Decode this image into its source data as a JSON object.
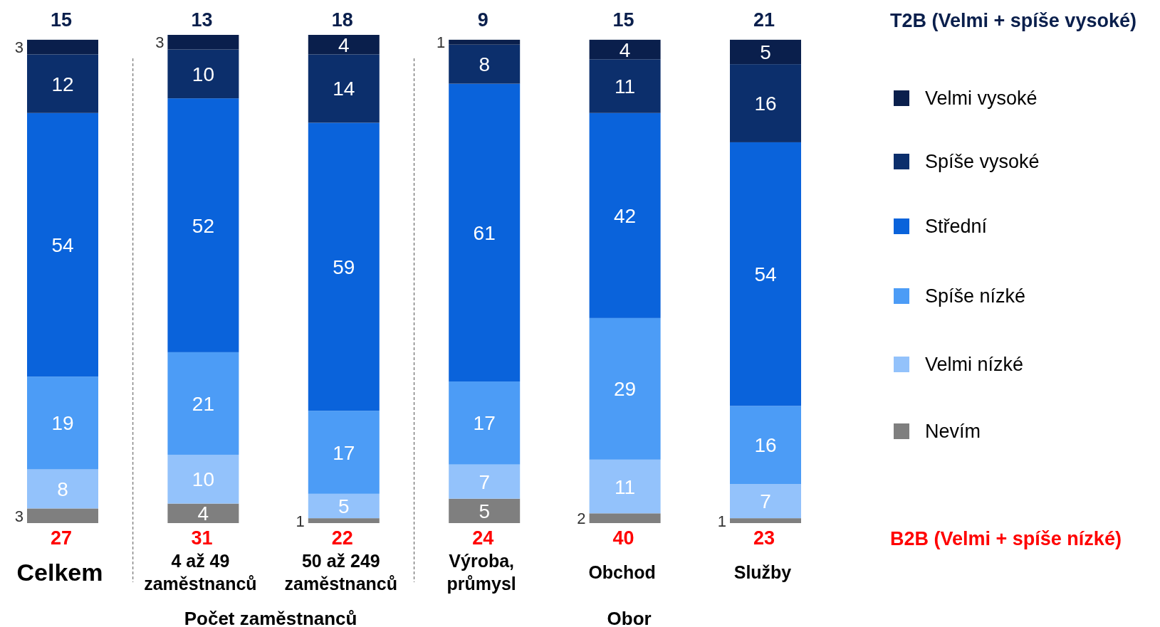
{
  "chart_data": {
    "type": "bar",
    "stacked": true,
    "data_labels": true,
    "legend": "right",
    "ylim": [
      0,
      100
    ],
    "tick_labels": "x",
    "categories": [
      "Celkem",
      "4 až 49 zaměstnanců",
      "50 až 249 zaměstnanců",
      "Výroba, průmysl",
      "Obchod",
      "Služby"
    ],
    "series": [
      {
        "name": "Nevím",
        "color": "#7f7f7f",
        "values": [
          3,
          4,
          1,
          5,
          2,
          1
        ]
      },
      {
        "name": "Velmi nízké",
        "color": "#93c2fb",
        "values": [
          8,
          10,
          5,
          7,
          11,
          7
        ]
      },
      {
        "name": "Spíše nízké",
        "color": "#4c9cf6",
        "values": [
          19,
          21,
          17,
          17,
          29,
          16
        ]
      },
      {
        "name": "Střední",
        "color": "#0a63db",
        "values": [
          54,
          52,
          59,
          61,
          42,
          54
        ]
      },
      {
        "name": "Spíše vysoké",
        "color": "#0c2f6c",
        "values": [
          12,
          10,
          14,
          8,
          11,
          16
        ]
      },
      {
        "name": "Velmi vysoké",
        "color": "#0a1f4c",
        "values": [
          3,
          3,
          4,
          1,
          4,
          5
        ]
      }
    ],
    "annotations": [
      "T2B (Velmi + spíše vysoké)",
      "B2B (Velmi + spíše nízké)",
      "Počet zaměstnanců",
      "Obor",
      {
        "text": "15",
        "x": "Celkem",
        "y": 99
      },
      {
        "text": "13",
        "x": "4 až 49 zaměstnanců",
        "y": 100
      },
      {
        "text": "18",
        "x": "50 až 249 zaměstnanců",
        "y": 100
      },
      {
        "text": "9",
        "x": "Výroba, průmysl",
        "y": 99
      },
      {
        "text": "15",
        "x": "Obchod",
        "y": 99
      },
      {
        "text": "21",
        "x": "Služby",
        "y": 99
      },
      {
        "text": "27",
        "x": "Celkem",
        "y": 0
      },
      {
        "text": "31",
        "x": "4 až 49 zaměstnanců",
        "y": 0
      },
      {
        "text": "22",
        "x": "50 až 249 zaměstnanců",
        "y": 0
      },
      {
        "text": "24",
        "x": "Výroba, průmysl",
        "y": 0
      },
      {
        "text": "40",
        "x": "Obchod",
        "y": 0
      },
      {
        "text": "23",
        "x": "Služby",
        "y": 0
      }
    ]
  }
}
